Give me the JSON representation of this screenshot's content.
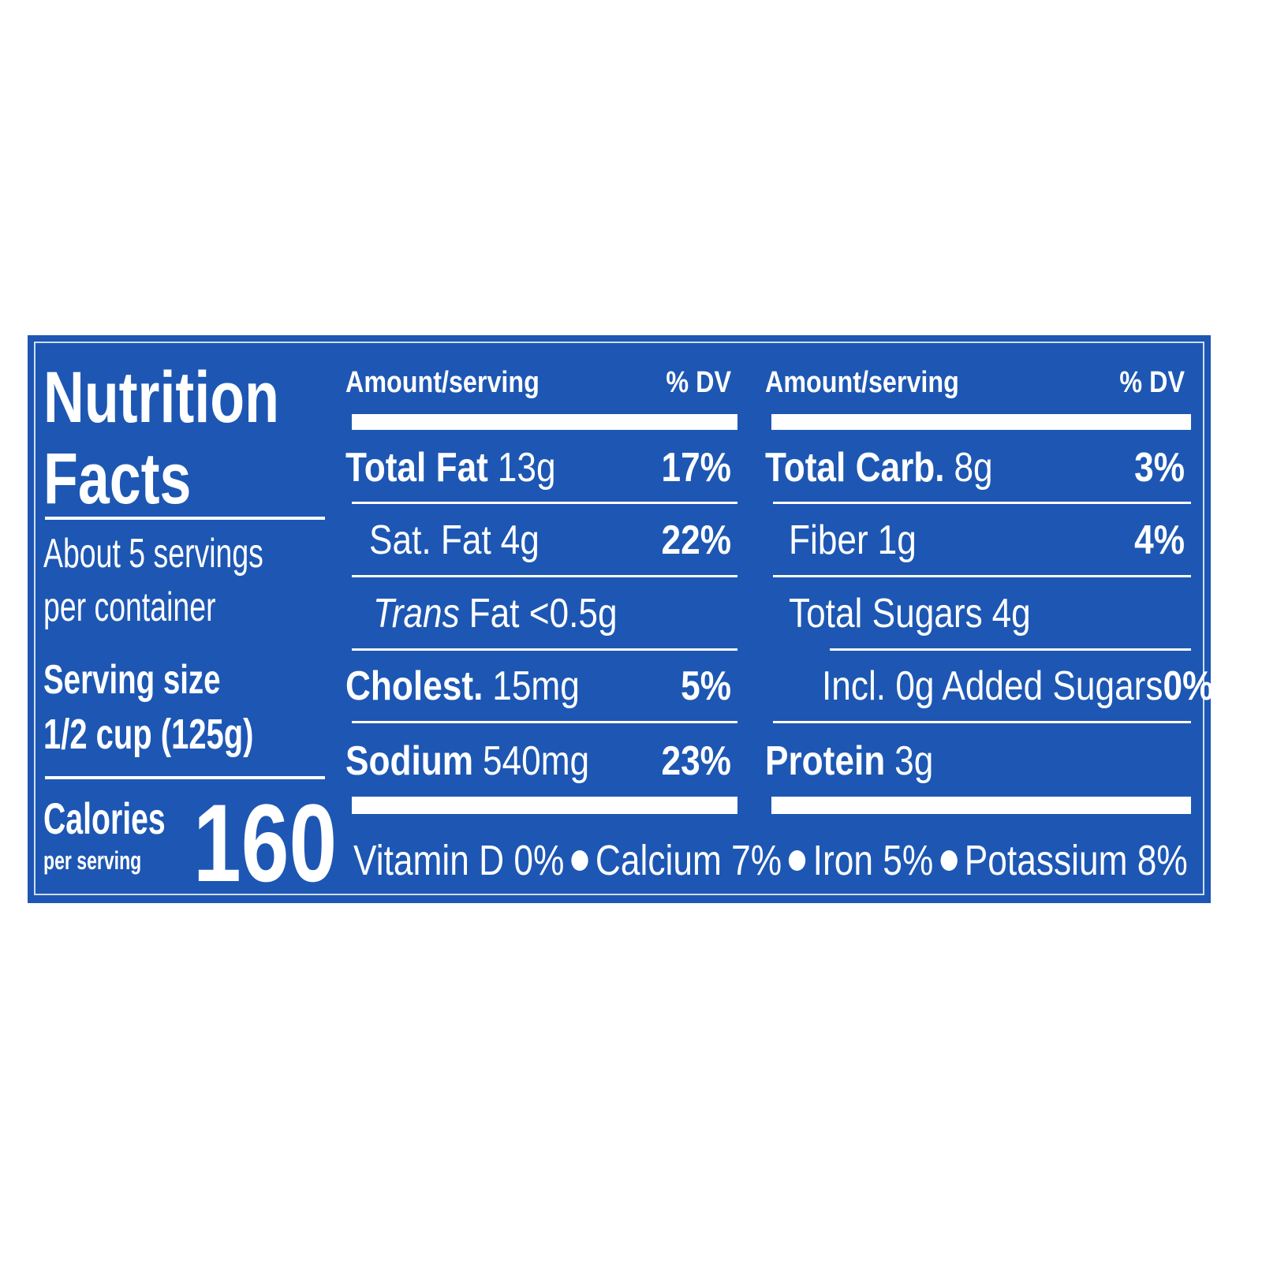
{
  "header": {
    "title_line1": "Nutrition",
    "title_line2": "Facts"
  },
  "servings": {
    "line1": "About 5 servings",
    "line2": "per container"
  },
  "serving_size": {
    "label": "Serving size",
    "value": "1/2 cup (125g)"
  },
  "calories": {
    "label": "Calories",
    "sublabel": "per serving",
    "value": "160"
  },
  "columns": [
    {
      "amount_header": "Amount/serving",
      "dv_header": "% DV",
      "rows": [
        {
          "name": "Total Fat",
          "amount": "13g",
          "dv": "17%"
        },
        {
          "name": "Sat. Fat",
          "amount": "4g",
          "dv": "22%"
        },
        {
          "name": "Trans",
          "amount": "Fat <0.5g"
        },
        {
          "name": "Cholest.",
          "amount": "15mg",
          "dv": "5%"
        },
        {
          "name": "Sodium",
          "amount": "540mg",
          "dv": "23%"
        }
      ]
    },
    {
      "amount_header": "Amount/serving",
      "dv_header": "% DV",
      "rows": [
        {
          "name": "Total Carb.",
          "amount": "8g",
          "dv": "3%"
        },
        {
          "name": "Fiber",
          "amount": "1g",
          "dv": "4%"
        },
        {
          "name": "Total Sugars",
          "amount": "4g"
        },
        {
          "name": "Incl. 0g Added Sugars",
          "dv": "0%"
        },
        {
          "name": "Protein",
          "amount": "3g"
        }
      ]
    }
  ],
  "footer": [
    "Vitamin D 0%",
    "Calcium 7%",
    "Iron 5%",
    "Potassium 8%"
  ]
}
